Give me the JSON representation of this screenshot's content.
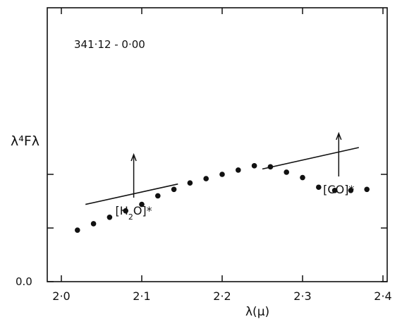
{
  "chart_data": {
    "type": "scatter",
    "title": "",
    "xlabel": "λ(μ)",
    "ylabel": "λ⁴Fλ",
    "xlim": [
      2.0,
      2.4
    ],
    "ylim": [
      0.0,
      1.0
    ],
    "grid": false,
    "x_ticks": [
      {
        "value": 2.0,
        "label": "2·0"
      },
      {
        "value": 2.1,
        "label": "2·1"
      },
      {
        "value": 2.2,
        "label": "2·2"
      },
      {
        "value": 2.3,
        "label": "2·3"
      },
      {
        "value": 2.4,
        "label": "2·4"
      }
    ],
    "y_ticks": [
      {
        "value": 0.0,
        "label": "0.0"
      },
      {
        "value": 0.5,
        "label": ""
      },
      {
        "value": 1.0,
        "label": ""
      }
    ],
    "panel_label": "341·12 - 0·00",
    "series": [
      {
        "kind": "points",
        "x": [
          2.02,
          2.04,
          2.06,
          2.08,
          2.1,
          2.12,
          2.14,
          2.16,
          2.18,
          2.2,
          2.22,
          2.24,
          2.26,
          2.28,
          2.3,
          2.32,
          2.34,
          2.36,
          2.38
        ],
        "y": [
          0.48,
          0.54,
          0.6,
          0.66,
          0.72,
          0.8,
          0.86,
          0.92,
          0.96,
          1.0,
          1.04,
          1.08,
          1.07,
          1.02,
          0.97,
          0.88,
          0.85,
          0.85,
          0.86
        ]
      },
      {
        "kind": "line",
        "x": [
          2.03,
          2.145
        ],
        "y": [
          0.72,
          0.91
        ]
      },
      {
        "kind": "line",
        "x": [
          2.25,
          2.37
        ],
        "y": [
          1.05,
          1.25
        ]
      }
    ],
    "annotations": [
      {
        "label_main": "[H",
        "label_sub": "2",
        "label_tail": "O]*",
        "x": 2.09,
        "y": 0.62
      },
      {
        "label_main": "[CO]*",
        "label_sub": "",
        "label_tail": "",
        "x": 2.345,
        "y": 0.73
      }
    ]
  }
}
